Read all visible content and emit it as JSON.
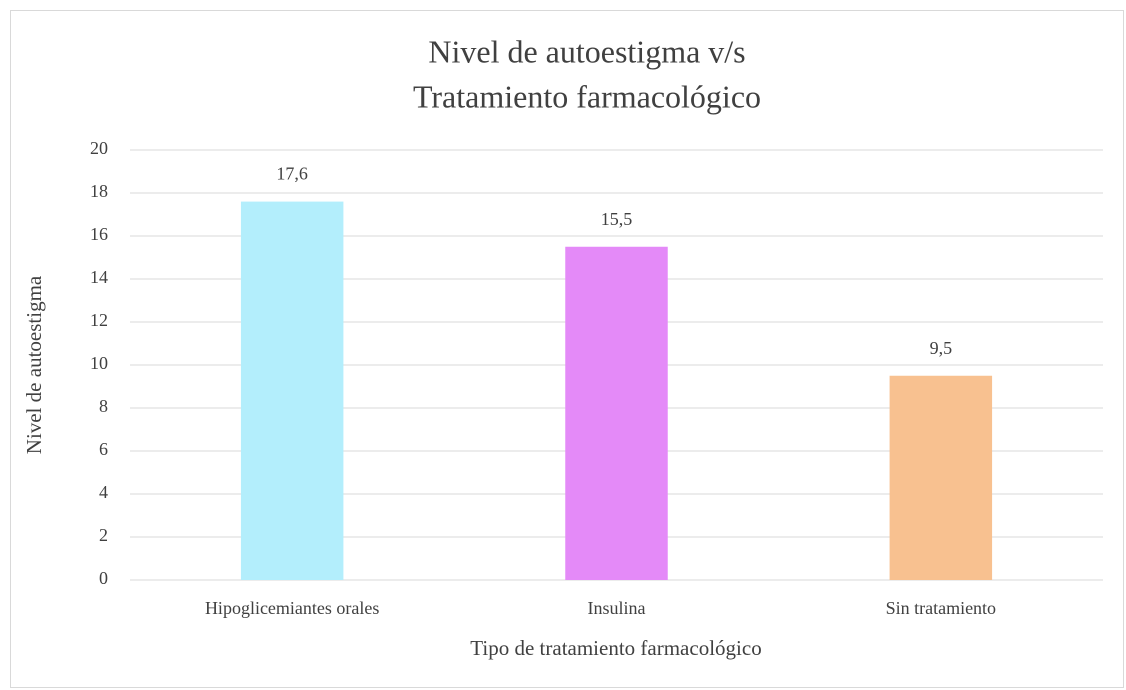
{
  "chart_data": {
    "type": "bar",
    "title": [
      "Nivel de autoestigma v/s",
      "Tratamiento farmacológico"
    ],
    "x_label": "Tipo de tratamiento farmacológico",
    "y_label": "Nivel de autoestigma",
    "categories": [
      "Hipoglicemiantes orales",
      "Insulina",
      "Sin tratamiento"
    ],
    "values": [
      17.6,
      15.5,
      9.5
    ],
    "value_labels": [
      "17,6",
      "15,5",
      "9,5"
    ],
    "colors": [
      "#b3eefc",
      "#e48af8",
      "#f8c190"
    ],
    "ylim": [
      0,
      20
    ],
    "yticks": [
      0,
      2,
      4,
      6,
      8,
      10,
      12,
      14,
      16,
      18,
      20
    ],
    "grid": true
  }
}
